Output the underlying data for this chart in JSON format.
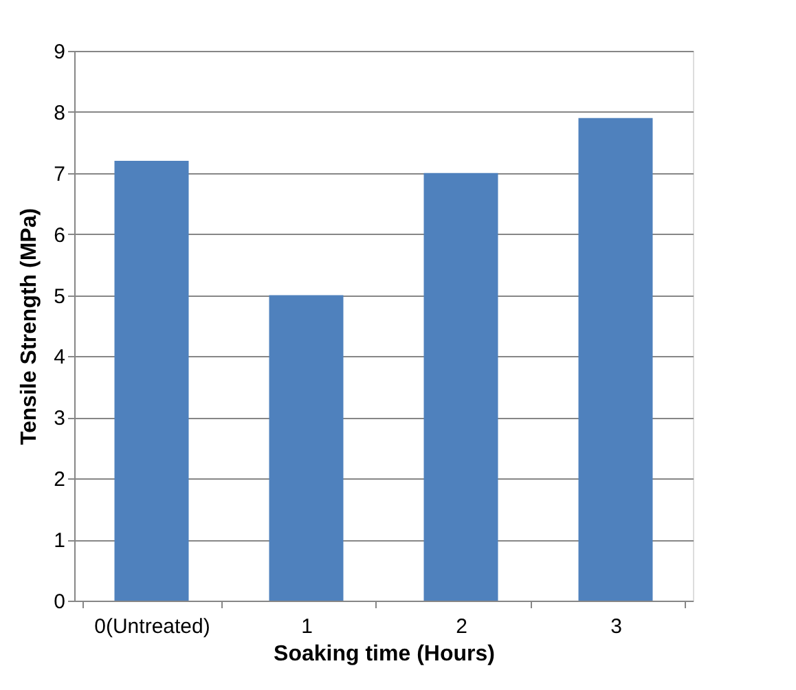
{
  "chart_data": {
    "type": "bar",
    "categories": [
      "0(Untreated)",
      "1",
      "2",
      "3"
    ],
    "values": [
      7.2,
      5.0,
      7.0,
      7.9
    ],
    "color": "#4f81bd",
    "xlabel": "Soaking time (Hours)",
    "ylabel": "Tensile Strength (MPa)",
    "ylim": [
      0,
      9
    ],
    "yticks": [
      0,
      1,
      2,
      3,
      4,
      5,
      6,
      7,
      8,
      9
    ],
    "grid": "y"
  }
}
